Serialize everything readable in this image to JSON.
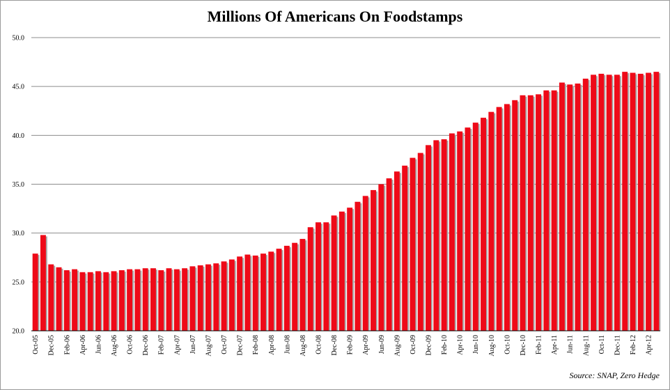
{
  "chart_data": {
    "type": "bar",
    "title": "Millions Of Americans On Foodstamps",
    "source": "Source: SNAP, Zero Hedge",
    "ylim": [
      20,
      50
    ],
    "yticks": [
      "20.0",
      "25.0",
      "30.0",
      "35.0",
      "40.0",
      "45.0",
      "50.0"
    ],
    "grid": true,
    "colors": {
      "bar": "#ee0a18",
      "bar_shadow": "#a9a9a9",
      "grid": "#8c8c8c"
    },
    "categories": [
      "Oct-05",
      "Nov-05",
      "Dec-05",
      "Jan-06",
      "Feb-06",
      "Mar-06",
      "Apr-06",
      "May-06",
      "Jun-06",
      "Jul-06",
      "Aug-06",
      "Sep-06",
      "Oct-06",
      "Nov-06",
      "Dec-06",
      "Jan-07",
      "Feb-07",
      "Mar-07",
      "Apr-07",
      "May-07",
      "Jun-07",
      "Jul-07",
      "Aug-07",
      "Sep-07",
      "Oct-07",
      "Nov-07",
      "Dec-07",
      "Jan-08",
      "Feb-08",
      "Mar-08",
      "Apr-08",
      "May-08",
      "Jun-08",
      "Jul-08",
      "Aug-08",
      "Sep-08",
      "Oct-08",
      "Nov-08",
      "Dec-08",
      "Jan-09",
      "Feb-09",
      "Mar-09",
      "Apr-09",
      "May-09",
      "Jun-09",
      "Jul-09",
      "Aug-09",
      "Sep-09",
      "Oct-09",
      "Nov-09",
      "Dec-09",
      "Jan-10",
      "Feb-10",
      "Mar-10",
      "Apr-10",
      "May-10",
      "Jun-10",
      "Jul-10",
      "Aug-10",
      "Sep-10",
      "Oct-10",
      "Nov-10",
      "Dec-10",
      "Jan-11",
      "Feb-11",
      "Mar-11",
      "Apr-11",
      "May-11",
      "Jun-11",
      "Jul-11",
      "Aug-11",
      "Sep-11",
      "Oct-11",
      "Nov-11",
      "Dec-11",
      "Jan-12",
      "Feb-12",
      "Mar-12",
      "Apr-12",
      "May-12"
    ],
    "xtick_labels": [
      "Oct-05",
      "Dec-05",
      "Feb-06",
      "Apr-06",
      "Jun-06",
      "Aug-06",
      "Oct-06",
      "Dec-06",
      "Feb-07",
      "Apr-07",
      "Jun-07",
      "Aug-07",
      "Oct-07",
      "Dec-07",
      "Feb-08",
      "Apr-08",
      "Jun-08",
      "Aug-08",
      "Oct-08",
      "Dec-08",
      "Feb-09",
      "Apr-09",
      "Jun-09",
      "Aug-09",
      "Oct-09",
      "Dec-09",
      "Feb-10",
      "Apr-10",
      "Jun-10",
      "Aug-10",
      "Oct-10",
      "Dec-10",
      "Feb-11",
      "Apr-11",
      "Jun-11",
      "Aug-11",
      "Oct-11",
      "Dec-11",
      "Feb-12",
      "Apr-12"
    ],
    "values": [
      27.9,
      29.8,
      26.8,
      26.5,
      26.2,
      26.3,
      26.0,
      26.0,
      26.1,
      26.0,
      26.1,
      26.2,
      26.3,
      26.3,
      26.4,
      26.4,
      26.2,
      26.4,
      26.3,
      26.4,
      26.6,
      26.7,
      26.8,
      26.9,
      27.1,
      27.3,
      27.6,
      27.8,
      27.7,
      27.9,
      28.1,
      28.4,
      28.7,
      29.0,
      29.4,
      30.6,
      31.1,
      31.1,
      31.8,
      32.2,
      32.6,
      33.2,
      33.8,
      34.4,
      35.0,
      35.6,
      36.3,
      36.9,
      37.7,
      38.2,
      39.0,
      39.5,
      39.6,
      40.2,
      40.4,
      40.8,
      41.3,
      41.8,
      42.4,
      42.9,
      43.2,
      43.6,
      44.1,
      44.1,
      44.2,
      44.6,
      44.6,
      45.4,
      45.2,
      45.3,
      45.8,
      46.2,
      46.3,
      46.2,
      46.2,
      46.5,
      46.4,
      46.3,
      46.4,
      46.5
    ]
  }
}
